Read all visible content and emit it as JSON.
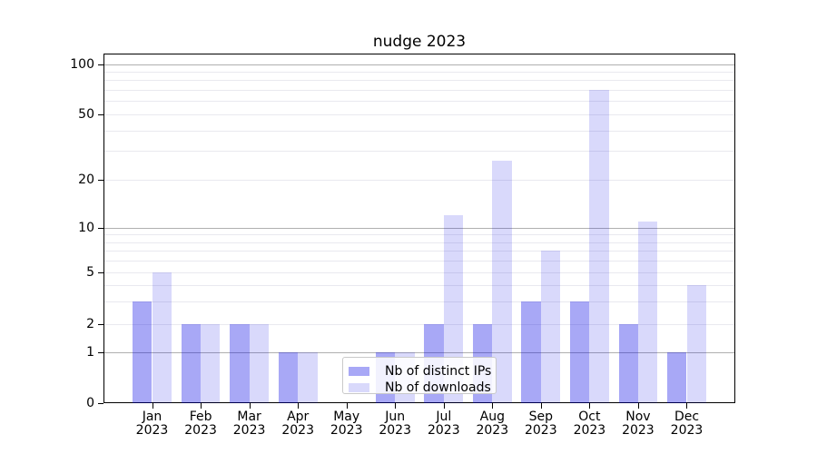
{
  "figure": {
    "background": "#ffffff",
    "frame_color": "#000000",
    "gridline_colors": {
      "major": "#b0b0b0",
      "minor": "#e9e9ef"
    }
  },
  "chart_data": {
    "type": "bar",
    "title": "nudge 2023",
    "year": "2023",
    "months": [
      "Jan",
      "Feb",
      "Mar",
      "Apr",
      "May",
      "Jun",
      "Jul",
      "Aug",
      "Sep",
      "Oct",
      "Nov",
      "Dec"
    ],
    "categories": [
      "Jan 2023",
      "Feb 2023",
      "Mar 2023",
      "Apr 2023",
      "May 2023",
      "Jun 2023",
      "Jul 2023",
      "Aug 2023",
      "Sep 2023",
      "Oct 2023",
      "Nov 2023",
      "Dec 2023"
    ],
    "series": [
      {
        "name": "Nb of distinct IPs",
        "color": "rgba(0,0,230,0.34)",
        "values": [
          3,
          2,
          2,
          1,
          0,
          1,
          2,
          2,
          3,
          3,
          2,
          1
        ]
      },
      {
        "name": "Nb of downloads",
        "color": "rgba(0,0,230,0.15)",
        "values": [
          5,
          2,
          2,
          1,
          0,
          1,
          12,
          26,
          7,
          70,
          11,
          4
        ]
      }
    ],
    "xlabel": "",
    "ylabel": "",
    "y_axis": {
      "scale": "symlog",
      "tick_values": [
        0,
        1,
        2,
        5,
        10,
        20,
        50,
        100
      ],
      "tick_labels": [
        "0",
        "1",
        "2",
        "5",
        "10",
        "20",
        "50",
        "100"
      ],
      "major_gridlines": [
        1,
        10,
        100
      ],
      "minor_gridlines": [
        2,
        3,
        4,
        5,
        6,
        7,
        8,
        9,
        20,
        30,
        40,
        50,
        60,
        70,
        80,
        90
      ],
      "range": [
        0,
        115
      ]
    },
    "grid": true,
    "legend": {
      "position": "lower center",
      "entries": [
        "Nb of distinct IPs",
        "Nb of downloads"
      ]
    },
    "bar_group_width_fraction": 0.8
  }
}
